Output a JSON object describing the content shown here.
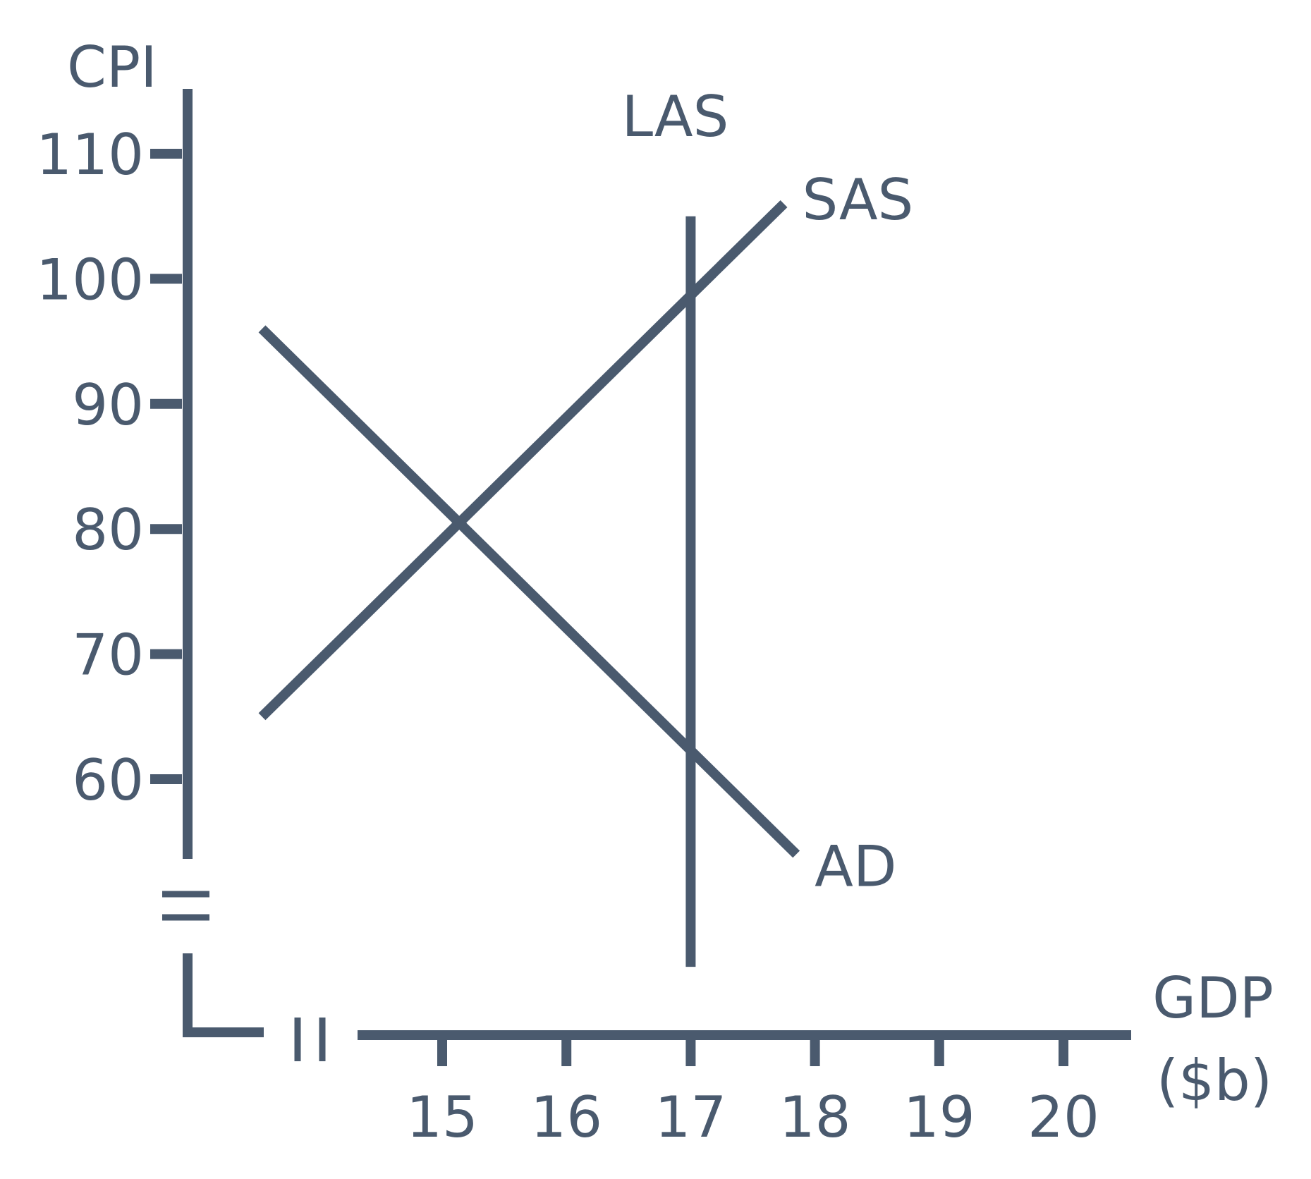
{
  "chart_data": {
    "type": "line",
    "color": "#4a5a6e",
    "ylabel": "CPI",
    "xlabel_line1": "GDP",
    "xlabel_line2": "($b)",
    "x_ticks": [
      15,
      16,
      17,
      18,
      19,
      20
    ],
    "x_tick_labels": [
      "15",
      "16",
      "17",
      "18",
      "19",
      "20"
    ],
    "y_ticks": [
      60,
      70,
      80,
      90,
      100,
      110
    ],
    "y_tick_labels": [
      "60",
      "70",
      "80",
      "90",
      "100",
      "110"
    ],
    "xlim": [
      13.7,
      20.5
    ],
    "ylim": [
      55,
      113
    ],
    "axis_breaks": true,
    "grid": false,
    "series": [
      {
        "name": "SAS",
        "label_position": "end",
        "points": [
          [
            13.55,
            65
          ],
          [
            17.75,
            106
          ]
        ]
      },
      {
        "name": "AD",
        "label_position": "end",
        "points": [
          [
            13.55,
            96
          ],
          [
            17.85,
            54
          ]
        ]
      },
      {
        "name": "LAS",
        "label_position": "top",
        "vertical": true,
        "x": 17,
        "y_range": [
          45,
          105
        ]
      }
    ]
  }
}
